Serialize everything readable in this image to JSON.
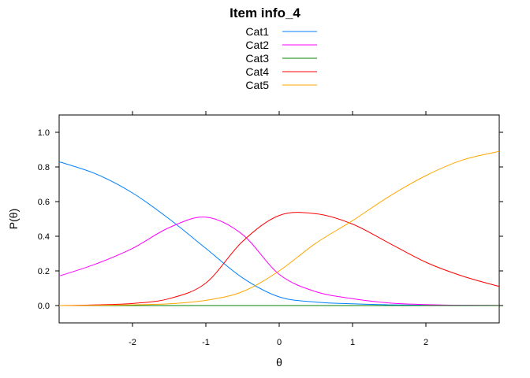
{
  "chart_data": {
    "type": "line",
    "title": "Item info_4",
    "xlabel": "θ",
    "ylabel": "P(θ)",
    "xlim": [
      -3,
      3
    ],
    "ylim": [
      -0.1,
      1.1
    ],
    "x_ticks": [
      -2,
      -1,
      0,
      1,
      2
    ],
    "y_ticks": [
      0.0,
      0.2,
      0.4,
      0.6,
      0.8,
      1.0
    ],
    "x_tick_labels": [
      "-2",
      "-1",
      "0",
      "1",
      "2"
    ],
    "y_tick_labels": [
      "0.0",
      "0.2",
      "0.4",
      "0.6",
      "0.8",
      "1.0"
    ],
    "grid": false,
    "legend_position": "top-center",
    "x": [
      -3.0,
      -2.5,
      -2.0,
      -1.5,
      -1.0,
      -0.5,
      0.0,
      0.5,
      1.0,
      1.5,
      2.0,
      2.5,
      3.0
    ],
    "series": [
      {
        "name": "Cat1",
        "color": "#0080ff",
        "values": [
          0.83,
          0.76,
          0.65,
          0.5,
          0.33,
          0.16,
          0.05,
          0.02,
          0.01,
          0.004,
          0.002,
          0.001,
          0.0
        ]
      },
      {
        "name": "Cat2",
        "color": "#ff00ff",
        "values": [
          0.17,
          0.24,
          0.33,
          0.45,
          0.51,
          0.41,
          0.18,
          0.08,
          0.04,
          0.015,
          0.006,
          0.002,
          0.001
        ]
      },
      {
        "name": "Cat3",
        "color": "#008000",
        "values": [
          0.0,
          0.0,
          0.0,
          0.0,
          0.0,
          0.0,
          0.0,
          0.0,
          0.0,
          0.0,
          0.0,
          0.0,
          0.0
        ]
      },
      {
        "name": "Cat4",
        "color": "#ff0000",
        "values": [
          0.0,
          0.004,
          0.012,
          0.04,
          0.13,
          0.37,
          0.52,
          0.53,
          0.47,
          0.36,
          0.25,
          0.17,
          0.11
        ]
      },
      {
        "name": "Cat5",
        "color": "#ffa500",
        "values": [
          0.0,
          0.001,
          0.004,
          0.01,
          0.03,
          0.08,
          0.2,
          0.36,
          0.49,
          0.63,
          0.75,
          0.84,
          0.89
        ]
      }
    ]
  }
}
